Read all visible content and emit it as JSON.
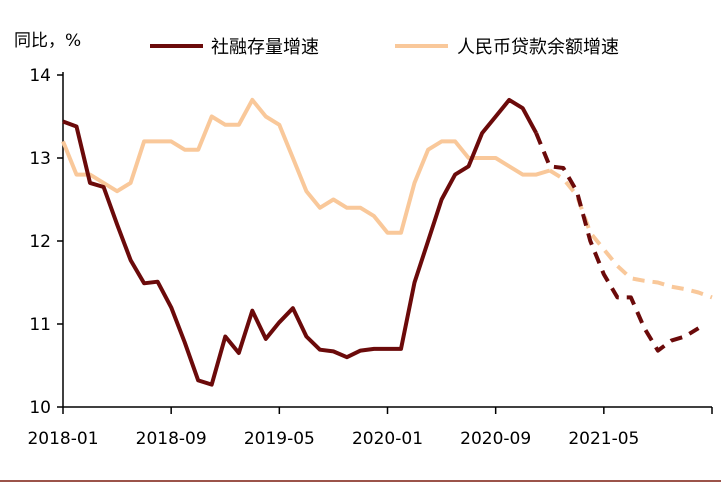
{
  "chart_data": {
    "type": "line",
    "unit_label": "同比，%",
    "x_tick_labels": [
      "2018-01",
      "2018-09",
      "2019-05",
      "2020-01",
      "2020-09",
      "2021-05"
    ],
    "x_tick_months": [
      0,
      8,
      16,
      24,
      32,
      40
    ],
    "x_range_months": [
      0,
      48
    ],
    "ylim": [
      10,
      14
    ],
    "y_ticks": [
      10,
      11,
      12,
      13,
      14
    ],
    "legend_position": "top",
    "series": [
      {
        "name": "社融存量增速",
        "color": "#6b0a0a",
        "actual": [
          [
            0,
            13.44
          ],
          [
            1,
            13.38
          ],
          [
            2,
            12.7
          ],
          [
            3,
            12.65
          ],
          [
            4,
            12.2
          ],
          [
            5,
            11.77
          ],
          [
            6,
            11.49
          ],
          [
            7,
            11.51
          ],
          [
            8,
            11.2
          ],
          [
            9,
            10.78
          ],
          [
            10,
            10.32
          ],
          [
            11,
            10.27
          ],
          [
            12,
            10.85
          ],
          [
            13,
            10.65
          ],
          [
            14,
            11.16
          ],
          [
            15,
            10.82
          ],
          [
            16,
            11.02
          ],
          [
            17,
            11.19
          ],
          [
            18,
            10.85
          ],
          [
            19,
            10.69
          ],
          [
            20,
            10.67
          ],
          [
            21,
            10.6
          ],
          [
            22,
            10.68
          ],
          [
            23,
            10.7
          ],
          [
            24,
            10.7
          ],
          [
            25,
            10.7
          ],
          [
            26,
            11.5
          ],
          [
            27,
            12.0
          ],
          [
            28,
            12.5
          ],
          [
            29,
            12.8
          ],
          [
            30,
            12.9
          ],
          [
            31,
            13.3
          ],
          [
            32,
            13.5
          ],
          [
            33,
            13.7
          ],
          [
            34,
            13.6
          ],
          [
            35,
            13.3
          ]
        ],
        "forecast": [
          [
            35,
            13.3
          ],
          [
            36,
            12.9
          ],
          [
            37,
            12.88
          ],
          [
            38,
            12.6
          ],
          [
            39,
            12.0
          ],
          [
            40,
            11.6
          ],
          [
            41,
            11.32
          ],
          [
            42,
            11.32
          ],
          [
            43,
            10.95
          ],
          [
            44,
            10.68
          ],
          [
            45,
            10.8
          ],
          [
            46,
            10.85
          ],
          [
            47,
            10.95
          ]
        ]
      },
      {
        "name": "人民币贷款余额增速",
        "color": "#f9c89a",
        "actual": [
          [
            0,
            13.2
          ],
          [
            1,
            12.8
          ],
          [
            2,
            12.8
          ],
          [
            3,
            12.7
          ],
          [
            4,
            12.6
          ],
          [
            5,
            12.7
          ],
          [
            6,
            13.2
          ],
          [
            7,
            13.2
          ],
          [
            8,
            13.2
          ],
          [
            9,
            13.1
          ],
          [
            10,
            13.1
          ],
          [
            11,
            13.5
          ],
          [
            12,
            13.4
          ],
          [
            13,
            13.4
          ],
          [
            14,
            13.7
          ],
          [
            15,
            13.5
          ],
          [
            16,
            13.4
          ],
          [
            17,
            13.0
          ],
          [
            18,
            12.6
          ],
          [
            19,
            12.4
          ],
          [
            20,
            12.5
          ],
          [
            21,
            12.4
          ],
          [
            22,
            12.4
          ],
          [
            23,
            12.3
          ],
          [
            24,
            12.1
          ],
          [
            25,
            12.1
          ],
          [
            26,
            12.7
          ],
          [
            27,
            13.1
          ],
          [
            28,
            13.2
          ],
          [
            29,
            13.2
          ],
          [
            30,
            13.0
          ],
          [
            31,
            13.0
          ],
          [
            32,
            13.0
          ],
          [
            33,
            12.9
          ],
          [
            34,
            12.8
          ],
          [
            35,
            12.8
          ],
          [
            36,
            12.85
          ]
        ],
        "forecast": [
          [
            36,
            12.85
          ],
          [
            37,
            12.75
          ],
          [
            38,
            12.55
          ],
          [
            39,
            12.1
          ],
          [
            40,
            11.9
          ],
          [
            41,
            11.7
          ],
          [
            42,
            11.55
          ],
          [
            43,
            11.52
          ],
          [
            44,
            11.5
          ],
          [
            45,
            11.45
          ],
          [
            46,
            11.42
          ],
          [
            47,
            11.38
          ],
          [
            48,
            11.32
          ]
        ]
      }
    ]
  }
}
